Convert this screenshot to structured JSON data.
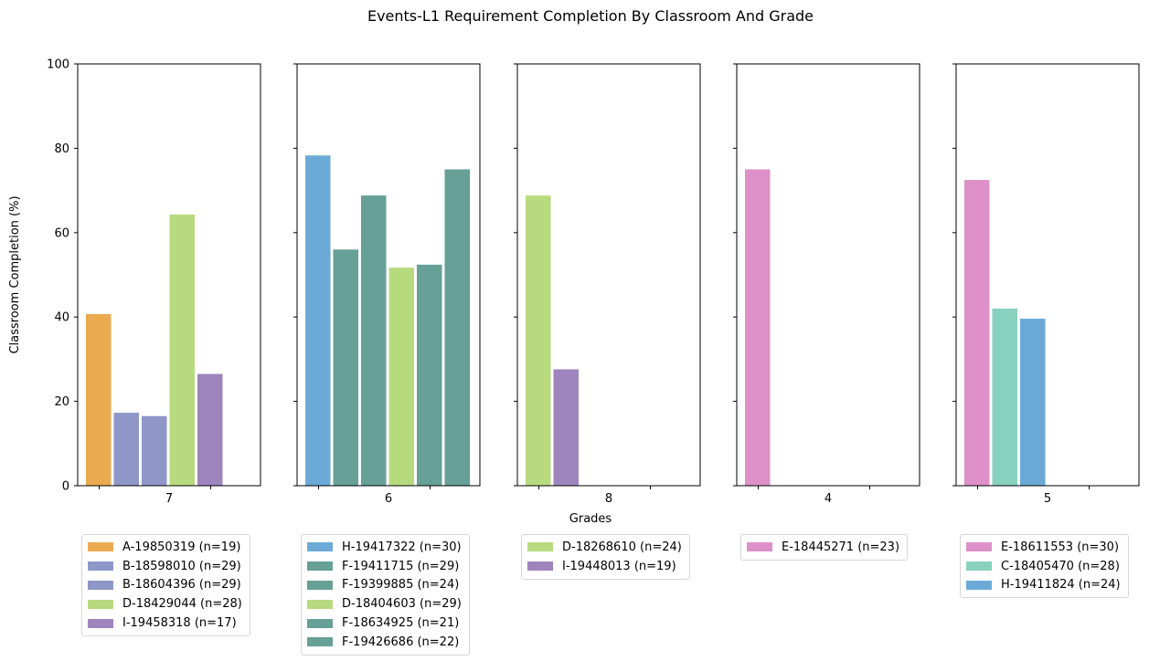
{
  "chart_data": {
    "type": "bar",
    "title": "Events-L1 Requirement Completion By Classroom And Grade",
    "xlabel": "Grades",
    "ylabel": "Classroom Completion (%)",
    "ylim": [
      0,
      100
    ],
    "yticks": [
      0,
      20,
      40,
      60,
      80,
      100
    ],
    "grid": false,
    "legend_placement": "below each panel",
    "panels": [
      {
        "grade": "7",
        "bars": [
          {
            "label": "A-19850319 (n=19)",
            "value": 40.7,
            "color": "#EBAA50"
          },
          {
            "label": "B-18598010 (n=29)",
            "value": 17.3,
            "color": "#8E97C8"
          },
          {
            "label": "B-18604396 (n=29)",
            "value": 16.5,
            "color": "#8E97C8"
          },
          {
            "label": "D-18429044 (n=28)",
            "value": 64.3,
            "color": "#B8DA7E"
          },
          {
            "label": "I-19458318 (n=17)",
            "value": 26.5,
            "color": "#9F85BD"
          }
        ]
      },
      {
        "grade": "6",
        "bars": [
          {
            "label": "H-19417322 (n=30)",
            "value": 78.3,
            "color": "#6BAAD6"
          },
          {
            "label": "F-19411715 (n=29)",
            "value": 56.0,
            "color": "#66A097"
          },
          {
            "label": "F-19399885 (n=24)",
            "value": 68.8,
            "color": "#66A097"
          },
          {
            "label": "D-18404603 (n=29)",
            "value": 51.7,
            "color": "#B8DA7E"
          },
          {
            "label": "F-18634925 (n=21)",
            "value": 52.4,
            "color": "#66A097"
          },
          {
            "label": "F-19426686 (n=22)",
            "value": 75.0,
            "color": "#66A097"
          }
        ]
      },
      {
        "grade": "8",
        "bars": [
          {
            "label": "D-18268610 (n=24)",
            "value": 68.8,
            "color": "#B8DA7E"
          },
          {
            "label": "I-19448013 (n=19)",
            "value": 27.6,
            "color": "#9F85BD"
          }
        ]
      },
      {
        "grade": "4",
        "bars": [
          {
            "label": "E-18445271 (n=23)",
            "value": 75.0,
            "color": "#DD91C8"
          }
        ]
      },
      {
        "grade": "5",
        "bars": [
          {
            "label": "E-18611553 (n=30)",
            "value": 72.5,
            "color": "#DD91C8"
          },
          {
            "label": "C-18405470 (n=28)",
            "value": 42.0,
            "color": "#88D1BF"
          },
          {
            "label": "H-19411824 (n=24)",
            "value": 39.6,
            "color": "#6BAAD6"
          }
        ]
      }
    ]
  }
}
